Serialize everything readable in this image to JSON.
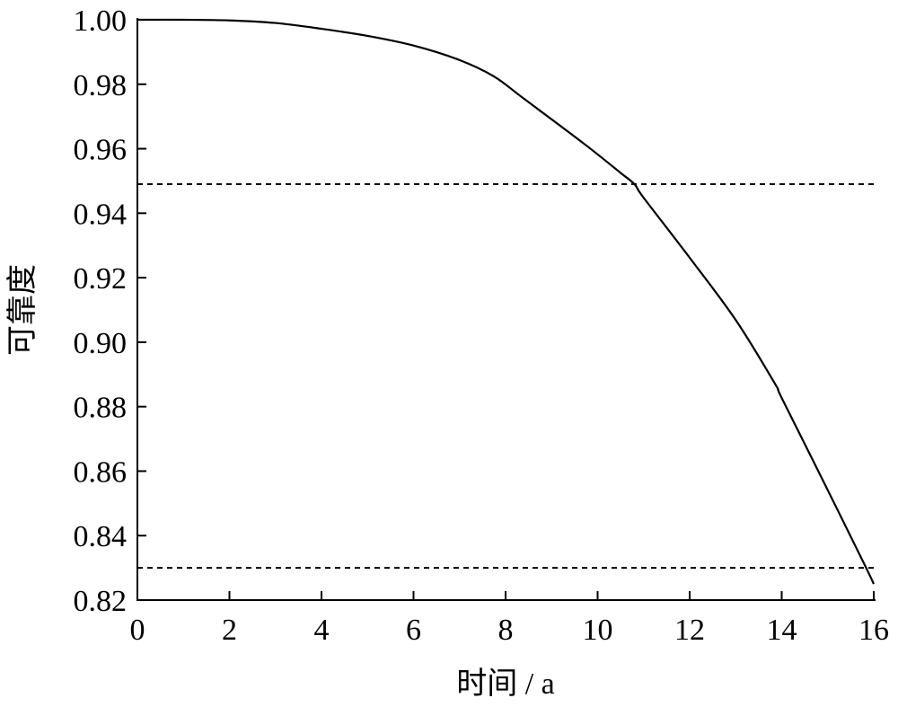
{
  "chart_data": {
    "type": "line",
    "title": "",
    "xlabel": "时间 / a",
    "ylabel": "可靠度",
    "xlim": [
      0,
      16
    ],
    "ylim": [
      0.82,
      1.0
    ],
    "xticks": [
      "0",
      "2",
      "4",
      "6",
      "8",
      "10",
      "12",
      "14",
      "16"
    ],
    "yticks": [
      "0.82",
      "0.84",
      "0.86",
      "0.88",
      "0.90",
      "0.92",
      "0.94",
      "0.96",
      "0.98",
      "1.00"
    ],
    "grid": false,
    "series": [
      {
        "name": "reliability",
        "style": "solid",
        "x": [
          0,
          1,
          2,
          3,
          4,
          5,
          6,
          7,
          7.75,
          8.4,
          9.7,
          10.5,
          10.8,
          11,
          12,
          13,
          13.85,
          14,
          14.9,
          15.8,
          16
        ],
        "y": [
          1.0,
          1.0,
          0.9998,
          0.999,
          0.9972,
          0.995,
          0.992,
          0.9875,
          0.9824,
          0.9755,
          0.9616,
          0.9525,
          0.949,
          0.9448,
          0.9262,
          0.9069,
          0.8872,
          0.8827,
          0.857,
          0.831,
          0.825
        ]
      }
    ],
    "reference_lines": [
      {
        "name": "upper-threshold",
        "y": 0.949,
        "style": "dashed"
      },
      {
        "name": "lower-threshold",
        "y": 0.83,
        "style": "dashed"
      }
    ]
  }
}
